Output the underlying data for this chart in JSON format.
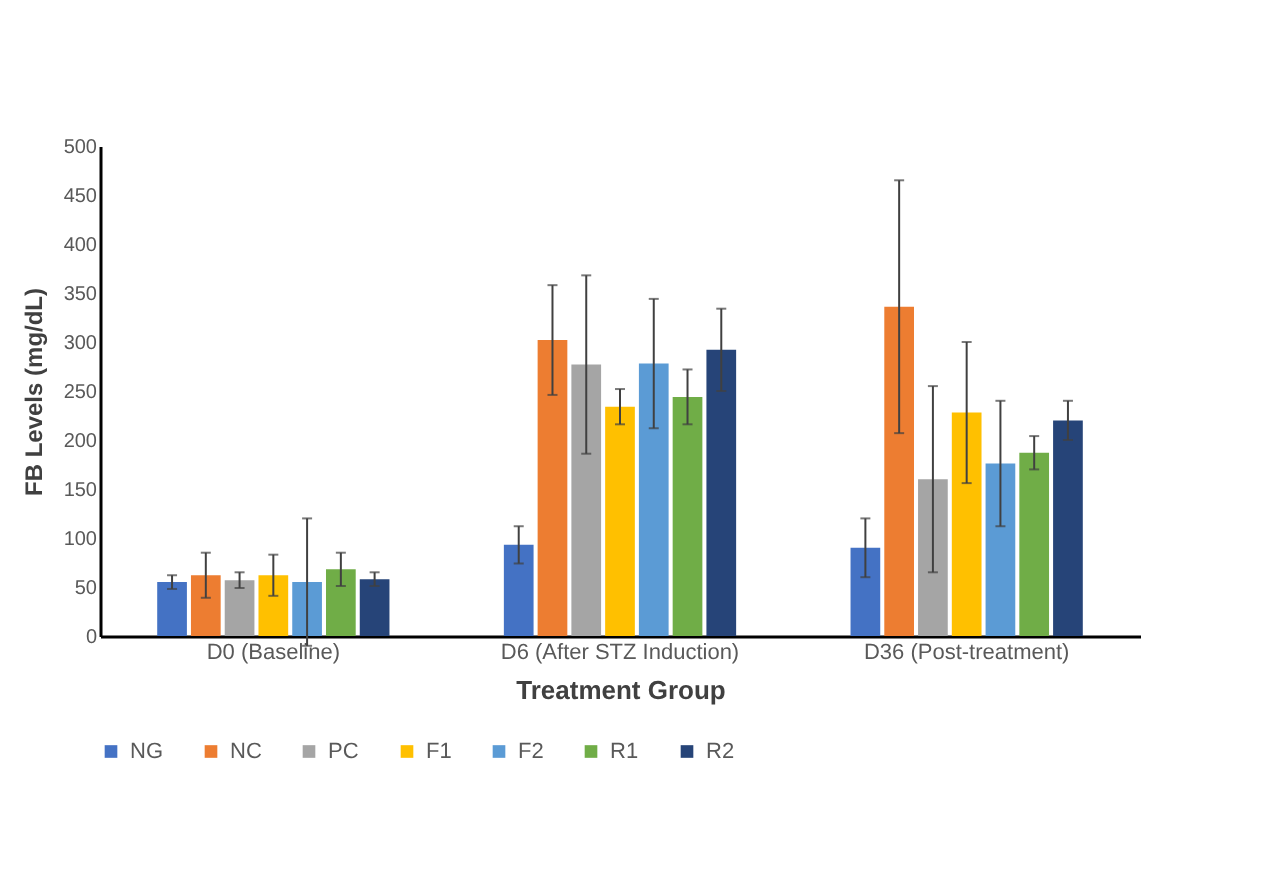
{
  "chart_data": {
    "type": "bar",
    "xlabel": "Treatment Group",
    "ylabel": "FB Levels (mg/dL)",
    "categories": [
      "D0 (Baseline)",
      "D6 (After STZ Induction)",
      "D36 (Post-treatment)"
    ],
    "series": [
      {
        "name": "NG",
        "color": "#4472c4",
        "values": [
          55,
          93,
          90
        ],
        "errors": [
          7,
          19,
          30
        ]
      },
      {
        "name": "NC",
        "color": "#ed7d31",
        "values": [
          62,
          302,
          336
        ],
        "errors": [
          23,
          56,
          129
        ]
      },
      {
        "name": "PC",
        "color": "#a5a5a5",
        "values": [
          57,
          277,
          160
        ],
        "errors": [
          8,
          91,
          95
        ]
      },
      {
        "name": "F1",
        "color": "#ffc000",
        "values": [
          62,
          234,
          228
        ],
        "errors": [
          21,
          18,
          72
        ]
      },
      {
        "name": "F2",
        "color": "#5b9bd5",
        "values": [
          55,
          278,
          176
        ],
        "errors": [
          65,
          66,
          64
        ]
      },
      {
        "name": "R1",
        "color": "#70ad47",
        "values": [
          68,
          244,
          187
        ],
        "errors": [
          17,
          28,
          17
        ]
      },
      {
        "name": "R2",
        "color": "#264478",
        "values": [
          58,
          292,
          220
        ],
        "errors": [
          7,
          42,
          20
        ]
      }
    ],
    "ylim": [
      0,
      500
    ],
    "yticks": [
      0,
      50,
      100,
      150,
      200,
      250,
      300,
      350,
      400,
      450,
      500
    ],
    "grid": false,
    "legend": "bottom"
  }
}
